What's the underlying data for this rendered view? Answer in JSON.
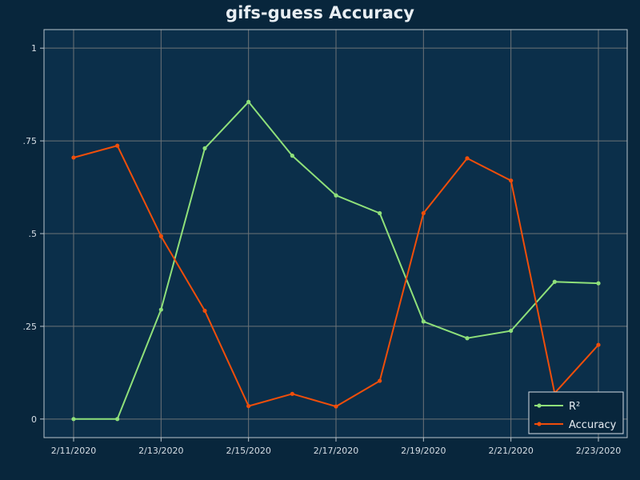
{
  "title": "gifs-guess Accuracy",
  "colors": {
    "background": "#08263c",
    "plot_background": "#0b2f4a",
    "grid": "#6d7377",
    "axis": "#b9c4cc",
    "r2": "#8fe07a",
    "accuracy": "#f04e0a"
  },
  "chart_data": {
    "type": "line",
    "title": "gifs-guess Accuracy",
    "xlabel": "",
    "ylabel": "",
    "x": [
      "2/11/2020",
      "2/12/2020",
      "2/13/2020",
      "2/14/2020",
      "2/15/2020",
      "2/16/2020",
      "2/17/2020",
      "2/18/2020",
      "2/19/2020",
      "2/20/2020",
      "2/21/2020",
      "2/22/2020",
      "2/23/2020"
    ],
    "x_ticks": [
      "2/11/2020",
      "2/13/2020",
      "2/15/2020",
      "2/17/2020",
      "2/19/2020",
      "2/21/2020",
      "2/23/2020"
    ],
    "y_ticks": [
      {
        "value": 0,
        "label": "0"
      },
      {
        "value": 0.25,
        "label": ".25"
      },
      {
        "value": 0.5,
        "label": ".5"
      },
      {
        "value": 0.75,
        "label": ".75"
      },
      {
        "value": 1,
        "label": "1"
      }
    ],
    "ylim": [
      -0.05,
      1.05
    ],
    "grid": true,
    "legend_position": "bottom-right",
    "series": [
      {
        "name": "R²",
        "color": "#8fe07a",
        "values": [
          0.0,
          0.0,
          0.295,
          0.73,
          0.855,
          0.71,
          0.603,
          0.555,
          0.263,
          0.218,
          0.238,
          0.37,
          0.366
        ]
      },
      {
        "name": "Accuracy",
        "color": "#f04e0a",
        "values": [
          0.705,
          0.737,
          0.493,
          0.292,
          0.035,
          0.068,
          0.034,
          0.103,
          0.555,
          0.703,
          0.643,
          0.07,
          0.2
        ]
      }
    ]
  }
}
